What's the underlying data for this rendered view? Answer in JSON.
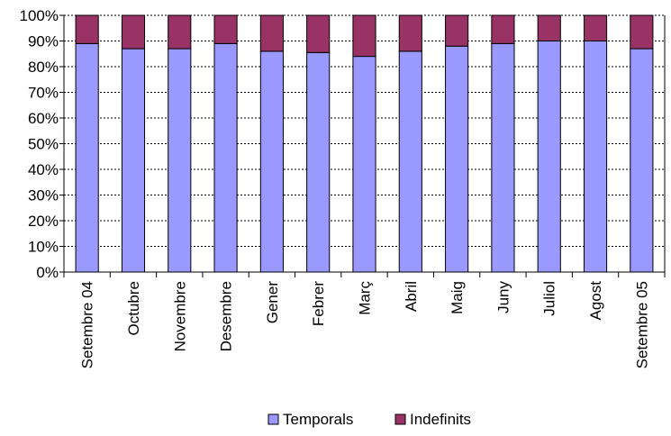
{
  "chart_data": {
    "type": "bar",
    "stacked": true,
    "normalized": true,
    "categories": [
      "Setembre 04",
      "Octubre",
      "Novembre",
      "Desembre",
      "Gener",
      "Febrer",
      "Març",
      "Abril",
      "Maig",
      "Juny",
      "Juliol",
      "Agost",
      "Setembre 05"
    ],
    "series": [
      {
        "name": "Temporals",
        "color": "#9999ff",
        "values": [
          89,
          87,
          87,
          89,
          86,
          85.5,
          84,
          86,
          88,
          89,
          90,
          90,
          87
        ]
      },
      {
        "name": "Indefinits",
        "color": "#993366",
        "values": [
          11,
          13,
          13,
          11,
          14,
          14.5,
          16,
          14,
          12,
          11,
          10,
          10,
          13
        ]
      }
    ],
    "ylim": [
      0,
      100
    ],
    "yticks": [
      "0%",
      "10%",
      "20%",
      "30%",
      "40%",
      "50%",
      "60%",
      "70%",
      "80%",
      "90%",
      "100%"
    ],
    "grid": true,
    "legend_position": "bottom"
  }
}
